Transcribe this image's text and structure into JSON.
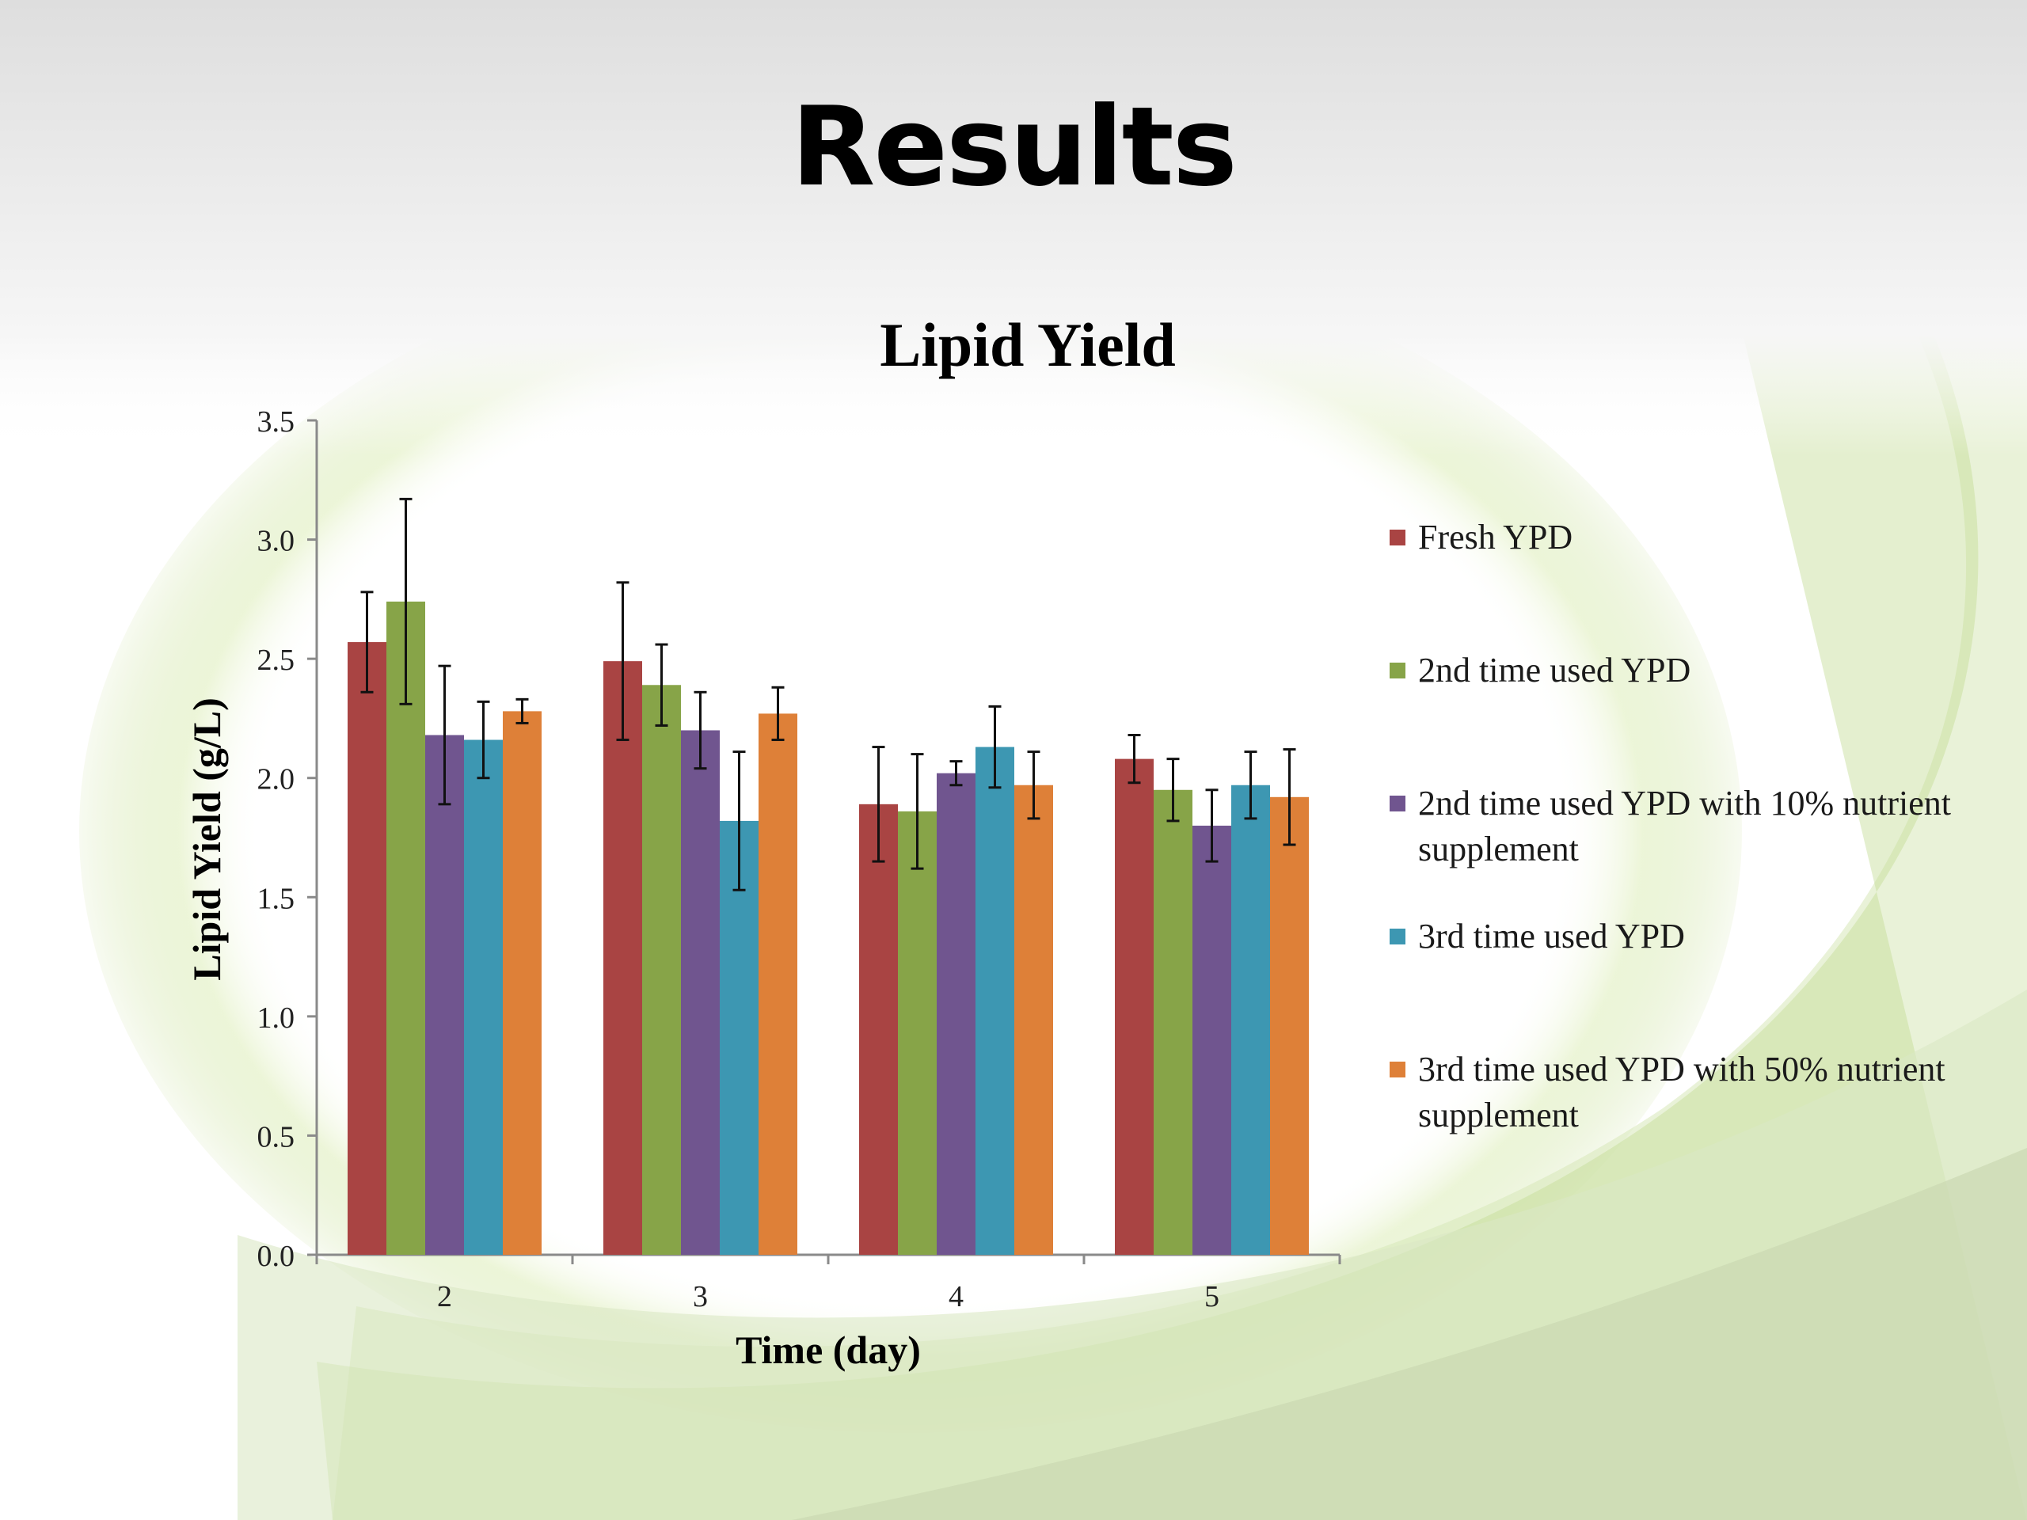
{
  "slide": {
    "title": "Results"
  },
  "colors": {
    "background_green": "#cfe3a6",
    "series": [
      "#a94443",
      "#87a448",
      "#70558f",
      "#3d97b2",
      "#de8038"
    ]
  },
  "chart_data": {
    "type": "bar",
    "title": "Lipid Yield",
    "xlabel": "Time (day)",
    "ylabel": "Lipid Yield (g/L)",
    "ylim": [
      0,
      3.5
    ],
    "yticks": [
      "0.0",
      "0.5",
      "1.0",
      "1.5",
      "2.0",
      "2.5",
      "3.0",
      "3.5"
    ],
    "categories": [
      "2",
      "3",
      "4",
      "5"
    ],
    "legend_position": "right",
    "series": [
      {
        "name": "Fresh YPD",
        "color": "#a94443",
        "values": [
          2.57,
          2.49,
          1.89,
          2.08
        ],
        "errors": [
          0.21,
          0.33,
          0.24,
          0.1
        ]
      },
      {
        "name": "2nd time used YPD",
        "color": "#87a448",
        "values": [
          2.74,
          2.39,
          1.86,
          1.95
        ],
        "errors": [
          0.43,
          0.17,
          0.24,
          0.13
        ]
      },
      {
        "name": "2nd time used YPD with 10% nutrient supplement",
        "color": "#70558f",
        "values": [
          2.18,
          2.2,
          2.02,
          1.8
        ],
        "errors": [
          0.29,
          0.16,
          0.05,
          0.15
        ]
      },
      {
        "name": "3rd time used YPD",
        "color": "#3d97b2",
        "values": [
          2.16,
          1.82,
          2.13,
          1.97
        ],
        "errors": [
          0.16,
          0.29,
          0.17,
          0.14
        ]
      },
      {
        "name": "3rd time used YPD with 50% nutrient supplement",
        "color": "#de8038",
        "values": [
          2.28,
          2.27,
          1.97,
          1.92
        ],
        "errors": [
          0.05,
          0.11,
          0.14,
          0.2
        ]
      }
    ]
  }
}
